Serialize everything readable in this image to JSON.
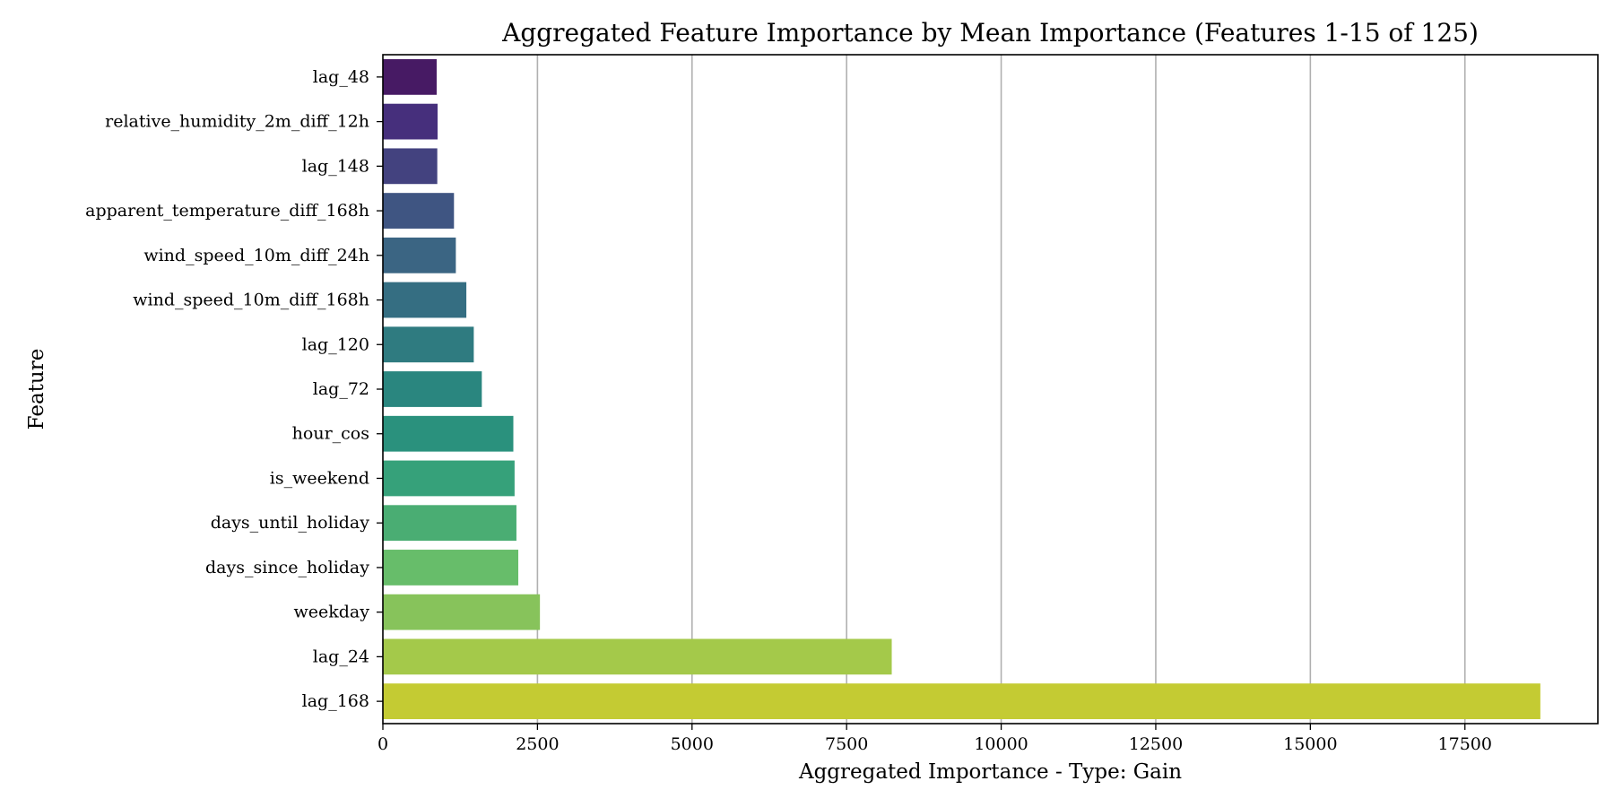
{
  "chart_data": {
    "type": "bar",
    "orientation": "horizontal",
    "title": "Aggregated Feature Importance by Mean Importance (Features 1-15 of 125)",
    "xlabel": "Aggregated Importance - Type: Gain",
    "ylabel": "Feature",
    "xlim": [
      0,
      19650
    ],
    "xticks": [
      0,
      2500,
      5000,
      7500,
      10000,
      12500,
      15000,
      17500
    ],
    "xtick_labels": [
      "0",
      "2500",
      "5000",
      "7500",
      "10000",
      "12500",
      "15000",
      "17500"
    ],
    "grid": "x",
    "categories": [
      "lag_48",
      "relative_humidity_2m_diff_12h",
      "lag_148",
      "apparent_temperature_diff_168h",
      "wind_speed_10m_diff_24h",
      "wind_speed_10m_diff_168h",
      "lag_120",
      "lag_72",
      "hour_cos",
      "is_weekend",
      "days_until_holiday",
      "days_since_holiday",
      "weekday",
      "lag_24",
      "lag_168"
    ],
    "values": [
      870,
      885,
      880,
      1150,
      1180,
      1350,
      1470,
      1600,
      2110,
      2130,
      2160,
      2190,
      2540,
      8230,
      18720
    ],
    "colors": [
      "#471a64",
      "#462f7c",
      "#43427f",
      "#3f5582",
      "#3b6583",
      "#356e82",
      "#2f7b80",
      "#2a867f",
      "#2a917d",
      "#36a17a",
      "#4aad73",
      "#67bd6a",
      "#87c35b",
      "#a4c94a",
      "#c4cb33"
    ]
  }
}
